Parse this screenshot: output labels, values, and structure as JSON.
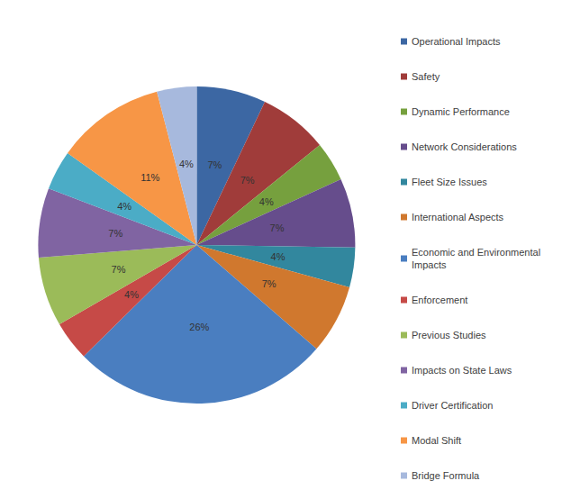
{
  "chart_data": {
    "type": "pie",
    "categories": [
      "Operational Impacts",
      "Safety",
      "Dynamic Performance",
      "Network Considerations",
      "Fleet Size Issues",
      "International Aspects",
      "Economic and Environmental Impacts",
      "Enforcement",
      "Previous Studies",
      "Impacts on State Laws",
      "Driver Certification",
      "Modal Shift",
      "Bridge Formula"
    ],
    "values": [
      7,
      7,
      4,
      7,
      4,
      7,
      26,
      4,
      7,
      7,
      4,
      11,
      4
    ],
    "value_labels": [
      "7%",
      "7%",
      "4%",
      "7%",
      "4%",
      "7%",
      "26%",
      "4%",
      "7%",
      "7%",
      "4%",
      "11%",
      "4%"
    ],
    "colors": [
      "#3C67A3",
      "#A03C3A",
      "#76A03E",
      "#664D8C",
      "#32879E",
      "#D0782E",
      "#4A7EC0",
      "#C64A47",
      "#9BBB59",
      "#8064A2",
      "#4BACC6",
      "#F79646",
      "#A7B9DD"
    ],
    "data_labels": true,
    "legend": "right"
  }
}
